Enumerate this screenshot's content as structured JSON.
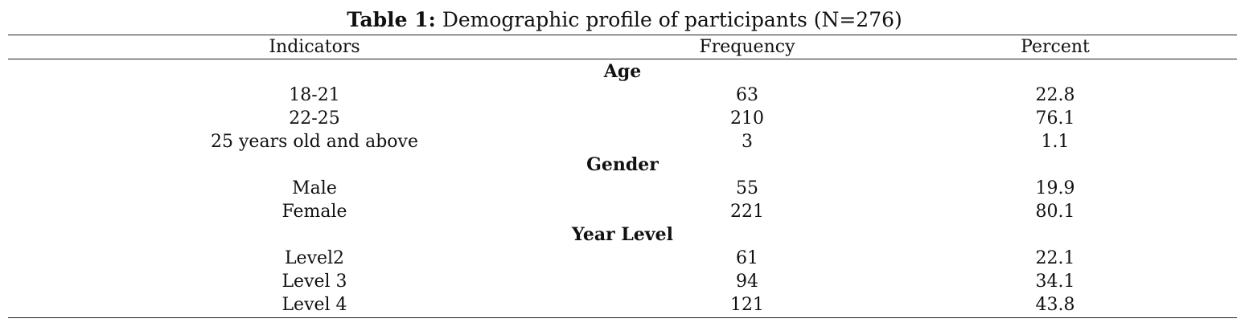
{
  "caption": {
    "label": "Table 1:",
    "text": "Demographic profile of participants (N=276)"
  },
  "headers": [
    "Indicators",
    "Frequency",
    "Percent"
  ],
  "groups": [
    {
      "title": "Age",
      "rows": [
        [
          "18-21",
          "63",
          "22.8"
        ],
        [
          "22-25",
          "210",
          "76.1"
        ],
        [
          "25 years old and above",
          "3",
          "1.1"
        ]
      ]
    },
    {
      "title": "Gender",
      "rows": [
        [
          "Male",
          "55",
          "19.9"
        ],
        [
          "Female",
          "221",
          "80.1"
        ]
      ]
    },
    {
      "title": "Year Level",
      "rows": [
        [
          "Level2",
          "61",
          "22.1"
        ],
        [
          "Level 3",
          "94",
          "34.1"
        ],
        [
          "Level 4",
          "121",
          "43.8"
        ]
      ]
    }
  ]
}
